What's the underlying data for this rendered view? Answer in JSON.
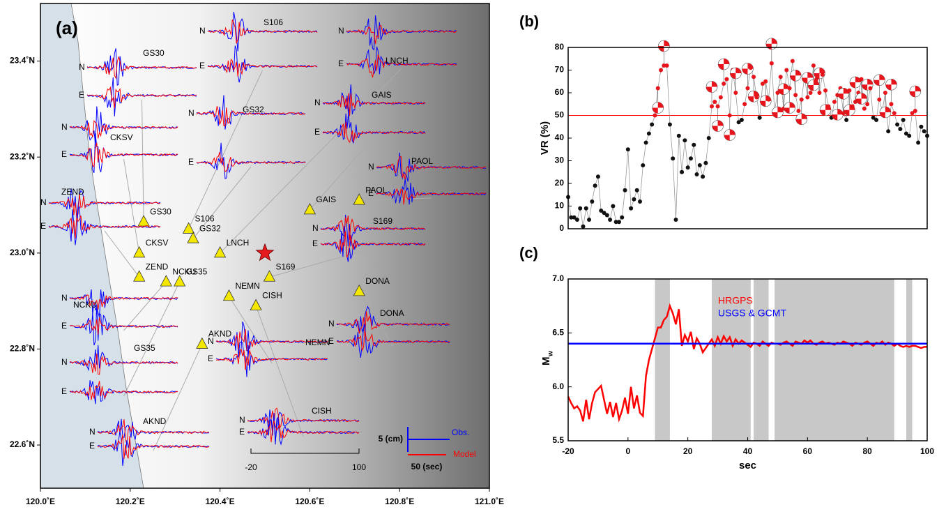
{
  "chart_data": [
    {
      "type": "map",
      "panel": "(a)",
      "xlim": [
        120.0,
        121.0
      ],
      "ylim": [
        22.51,
        23.52
      ],
      "xticks": [
        {
          "value": 120.0,
          "label": "120.0˚E"
        },
        {
          "value": 120.2,
          "label": "120.2˚E"
        },
        {
          "value": 120.4,
          "label": "120.4˚E"
        },
        {
          "value": 120.6,
          "label": "120.6˚E"
        },
        {
          "value": 120.8,
          "label": "120.8˚E"
        },
        {
          "value": 121.0,
          "label": "121.0˚E"
        }
      ],
      "yticks": [
        {
          "value": 22.6,
          "label": "22.6˚N"
        },
        {
          "value": 22.8,
          "label": "22.8˚N"
        },
        {
          "value": 23.0,
          "label": "23.0˚N"
        },
        {
          "value": 23.2,
          "label": "23.2˚N"
        },
        {
          "value": 23.4,
          "label": "23.4˚N"
        }
      ],
      "stations": [
        {
          "name": "GS30",
          "lon": 120.23,
          "lat": 23.065
        },
        {
          "name": "CKSV",
          "lon": 120.22,
          "lat": 23.0
        },
        {
          "name": "ZEND",
          "lon": 120.22,
          "lat": 22.95
        },
        {
          "name": "NCKU",
          "lon": 120.28,
          "lat": 22.94
        },
        {
          "name": "GS35",
          "lon": 120.31,
          "lat": 22.94
        },
        {
          "name": "AKND",
          "lon": 120.36,
          "lat": 22.81
        },
        {
          "name": "S106",
          "lon": 120.33,
          "lat": 23.05
        },
        {
          "name": "GS32",
          "lon": 120.34,
          "lat": 23.03
        },
        {
          "name": "LNCH",
          "lon": 120.4,
          "lat": 23.0
        },
        {
          "name": "GAIS",
          "lon": 120.6,
          "lat": 23.09
        },
        {
          "name": "PAOL",
          "lon": 120.71,
          "lat": 23.11
        },
        {
          "name": "S169",
          "lon": 120.51,
          "lat": 22.95
        },
        {
          "name": "DONA",
          "lon": 120.71,
          "lat": 22.92
        },
        {
          "name": "NEMN",
          "lon": 120.42,
          "lat": 22.91
        },
        {
          "name": "CISH",
          "lon": 120.48,
          "lat": 22.89
        }
      ],
      "epicenter": {
        "lon": 120.5,
        "lat": 23.0
      },
      "components": [
        "N",
        "E"
      ],
      "scale": {
        "amplitude": "5 (cm)",
        "duration": "50 (sec)",
        "observed": "Obs.",
        "model": "Model",
        "time_axis": [
          "-20",
          "100"
        ]
      }
    },
    {
      "type": "scatter",
      "panel": "(b)",
      "ylabel": "VR (%)",
      "ylim": [
        0,
        80
      ],
      "yticks": [
        0,
        10,
        20,
        30,
        40,
        50,
        60,
        70,
        80
      ],
      "hline": 50,
      "values": [
        14,
        5,
        5,
        4,
        9,
        1,
        9,
        4,
        12,
        19,
        23,
        8,
        7,
        6,
        4,
        10,
        3,
        3,
        5,
        17,
        35,
        9,
        13,
        17,
        12,
        28,
        38,
        42,
        46,
        50,
        62,
        70,
        72,
        72,
        46,
        31,
        4,
        41,
        25,
        39,
        27,
        31,
        37,
        24,
        28,
        23,
        29,
        40,
        54,
        56,
        54,
        58,
        64,
        66,
        50,
        70,
        60,
        47,
        48,
        55,
        62,
        71,
        67,
        58,
        49,
        64,
        65,
        57,
        73,
        52,
        60,
        67,
        53,
        70,
        62,
        74,
        59,
        52,
        57,
        67,
        58,
        60,
        72,
        66,
        60,
        68,
        61,
        54,
        49,
        56,
        59,
        62,
        51,
        48,
        61,
        54,
        56,
        60,
        66,
        53,
        55,
        62,
        49,
        48,
        57,
        52,
        60,
        43,
        55,
        51,
        46,
        44,
        48,
        42,
        41,
        51,
        52,
        38,
        45,
        43,
        41
      ]
    },
    {
      "type": "line",
      "panel": "(c)",
      "xlabel": "sec",
      "ylabel": "M",
      "ylabel_sub": "w",
      "xlim": [
        -20,
        100
      ],
      "xticks": [
        -20,
        0,
        20,
        40,
        60,
        80,
        100
      ],
      "ylim": [
        5.5,
        7.0
      ],
      "yticks": [
        {
          "value": 5.5,
          "label": "5.5"
        },
        {
          "value": 6.0,
          "label": "6.0"
        },
        {
          "value": 6.5,
          "label": "6.5"
        },
        {
          "value": 7.0,
          "label": "7.0"
        }
      ],
      "shaded": [
        [
          9,
          14
        ],
        [
          28,
          41
        ],
        [
          42,
          47
        ],
        [
          49,
          89
        ],
        [
          93,
          95
        ]
      ],
      "series": [
        {
          "name": "HRGPS",
          "color": "#ff0000",
          "x": [
            -20,
            -19,
            -18,
            -17,
            -16,
            -15,
            -14,
            -13,
            -12,
            -11,
            -10,
            -9,
            -8,
            -7,
            -6,
            -5,
            -4,
            -3,
            -2,
            -1,
            0,
            1,
            2,
            3,
            4,
            5,
            6,
            7,
            8,
            9,
            10,
            11,
            12,
            13,
            14,
            15,
            16,
            17,
            18,
            19,
            20,
            21,
            22,
            23,
            24,
            25,
            26,
            27,
            28,
            29,
            30,
            31,
            32,
            33,
            34,
            35,
            36,
            37,
            38,
            39,
            40,
            41,
            42,
            43,
            44,
            45,
            46,
            47,
            48,
            49,
            50,
            51,
            52,
            53,
            54,
            55,
            56,
            57,
            58,
            59,
            60,
            61,
            62,
            63,
            64,
            65,
            66,
            67,
            68,
            69,
            70,
            71,
            72,
            73,
            74,
            75,
            76,
            77,
            78,
            79,
            80,
            81,
            82,
            83,
            84,
            85,
            86,
            87,
            88,
            89,
            90,
            91,
            92,
            93,
            94,
            95,
            96,
            97,
            98,
            99,
            100
          ],
          "values": [
            5.91,
            5.85,
            5.8,
            5.82,
            5.78,
            5.68,
            5.88,
            5.7,
            5.85,
            5.95,
            5.98,
            6.01,
            5.88,
            5.75,
            5.86,
            5.72,
            5.85,
            5.7,
            5.78,
            5.9,
            5.75,
            6.0,
            5.8,
            5.92,
            5.76,
            5.73,
            6.1,
            6.25,
            6.35,
            6.45,
            6.55,
            6.55,
            6.62,
            6.65,
            6.75,
            6.68,
            6.58,
            6.72,
            6.38,
            6.48,
            6.42,
            6.51,
            6.35,
            6.45,
            6.4,
            6.32,
            6.36,
            6.4,
            6.44,
            6.38,
            6.46,
            6.4,
            6.47,
            6.42,
            6.46,
            6.38,
            6.44,
            6.4,
            6.43,
            6.41,
            6.39,
            6.37,
            6.41,
            6.4,
            6.38,
            6.42,
            6.4,
            6.38,
            6.41,
            6.4,
            6.4,
            6.39,
            6.41,
            6.42,
            6.4,
            6.38,
            6.42,
            6.41,
            6.4,
            6.43,
            6.41,
            6.43,
            6.4,
            6.39,
            6.41,
            6.42,
            6.4,
            6.41,
            6.4,
            6.39,
            6.41,
            6.4,
            6.42,
            6.41,
            6.4,
            6.38,
            6.41,
            6.4,
            6.39,
            6.41,
            6.42,
            6.4,
            6.38,
            6.41,
            6.4,
            6.42,
            6.39,
            6.41,
            6.4,
            6.38,
            6.4,
            6.38,
            6.37,
            6.38,
            6.37,
            6.38,
            6.38,
            6.37,
            6.36,
            6.37,
            6.37
          ]
        },
        {
          "name": "USGS & GCMT",
          "color": "#0000ff",
          "x": [
            -20,
            100
          ],
          "values": [
            6.4,
            6.4
          ]
        }
      ]
    }
  ]
}
